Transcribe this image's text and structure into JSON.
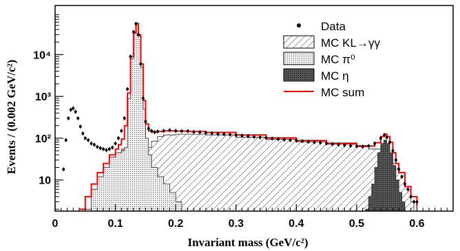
{
  "chart_data": {
    "type": "line",
    "xlabel": "Invariant mass (GeV/c²)",
    "ylabel": "Events / (0.002 GeV/c²)",
    "xlim": [
      0,
      0.66
    ],
    "ylim": [
      1.8,
      150000
    ],
    "yscale": "log",
    "x_ticks": [
      0,
      0.1,
      0.2,
      0.3,
      0.4,
      0.5,
      0.6
    ],
    "x_tick_labels": [
      "0",
      "0.1",
      "0.2",
      "0.3",
      "0.4",
      "0.5",
      "0.6"
    ],
    "y_ticks": [
      10,
      100,
      1000,
      10000
    ],
    "y_tick_labels": [
      "10",
      "10²",
      "10³",
      "10⁴"
    ],
    "legend_position": "top-right",
    "legend": [
      {
        "label": "Data",
        "style": "marker"
      },
      {
        "label": "MC KL→γγ",
        "style": "hatch"
      },
      {
        "label": "MC π⁰",
        "style": "dots"
      },
      {
        "label": "MC η",
        "style": "dense"
      },
      {
        "label": "MC sum",
        "style": "line"
      }
    ],
    "series": [
      {
        "name": "Data",
        "kind": "points",
        "color": "#000000",
        "points": [
          [
            0.014,
            18
          ],
          [
            0.018,
            90
          ],
          [
            0.022,
            300
          ],
          [
            0.026,
            480
          ],
          [
            0.03,
            520
          ],
          [
            0.034,
            430
          ],
          [
            0.038,
            300
          ],
          [
            0.042,
            190
          ],
          [
            0.046,
            130
          ],
          [
            0.05,
            100
          ],
          [
            0.055,
            90
          ],
          [
            0.06,
            75
          ],
          [
            0.065,
            70
          ],
          [
            0.07,
            62
          ],
          [
            0.075,
            58
          ],
          [
            0.08,
            55
          ],
          [
            0.085,
            52
          ],
          [
            0.09,
            55
          ],
          [
            0.095,
            60
          ],
          [
            0.1,
            75
          ],
          [
            0.105,
            100
          ],
          [
            0.11,
            150
          ],
          [
            0.115,
            300
          ],
          [
            0.12,
            1500
          ],
          [
            0.125,
            9000
          ],
          [
            0.13,
            35000
          ],
          [
            0.134,
            55000
          ],
          [
            0.138,
            30000
          ],
          [
            0.142,
            6000
          ],
          [
            0.146,
            900
          ],
          [
            0.15,
            250
          ],
          [
            0.155,
            170
          ],
          [
            0.16,
            150
          ],
          [
            0.165,
            140
          ],
          [
            0.17,
            145
          ],
          [
            0.18,
            150
          ],
          [
            0.19,
            155
          ],
          [
            0.2,
            150
          ],
          [
            0.21,
            148
          ],
          [
            0.22,
            148
          ],
          [
            0.23,
            142
          ],
          [
            0.24,
            140
          ],
          [
            0.25,
            135
          ],
          [
            0.26,
            132
          ],
          [
            0.27,
            128
          ],
          [
            0.28,
            125
          ],
          [
            0.29,
            122
          ],
          [
            0.3,
            118
          ],
          [
            0.31,
            115
          ],
          [
            0.32,
            112
          ],
          [
            0.33,
            108
          ],
          [
            0.34,
            105
          ],
          [
            0.35,
            102
          ],
          [
            0.36,
            98
          ],
          [
            0.37,
            95
          ],
          [
            0.38,
            92
          ],
          [
            0.39,
            90
          ],
          [
            0.4,
            88
          ],
          [
            0.41,
            85
          ],
          [
            0.42,
            82
          ],
          [
            0.43,
            80
          ],
          [
            0.44,
            78
          ],
          [
            0.45,
            75
          ],
          [
            0.46,
            72
          ],
          [
            0.47,
            70
          ],
          [
            0.48,
            68
          ],
          [
            0.49,
            66
          ],
          [
            0.5,
            64
          ],
          [
            0.51,
            63
          ],
          [
            0.52,
            65
          ],
          [
            0.53,
            75
          ],
          [
            0.54,
            100
          ],
          [
            0.546,
            120
          ],
          [
            0.55,
            105
          ],
          [
            0.555,
            80
          ],
          [
            0.56,
            50
          ],
          [
            0.565,
            30
          ],
          [
            0.57,
            18
          ],
          [
            0.575,
            12
          ],
          [
            0.58,
            8
          ],
          [
            0.585,
            6
          ],
          [
            0.59,
            4
          ],
          [
            0.595,
            3
          ],
          [
            0.6,
            3
          ]
        ]
      },
      {
        "name": "MC KL→γγ",
        "kind": "hatch",
        "points": [
          [
            0.09,
            5
          ],
          [
            0.095,
            15
          ],
          [
            0.1,
            30
          ],
          [
            0.105,
            45
          ],
          [
            0.11,
            55
          ],
          [
            0.115,
            48
          ],
          [
            0.12,
            40
          ],
          [
            0.13,
            38
          ],
          [
            0.14,
            45
          ],
          [
            0.15,
            60
          ],
          [
            0.16,
            85
          ],
          [
            0.17,
            110
          ],
          [
            0.18,
            120
          ],
          [
            0.2,
            125
          ],
          [
            0.22,
            125
          ],
          [
            0.25,
            120
          ],
          [
            0.3,
            105
          ],
          [
            0.35,
            95
          ],
          [
            0.4,
            82
          ],
          [
            0.45,
            72
          ],
          [
            0.5,
            62
          ],
          [
            0.52,
            55
          ],
          [
            0.54,
            42
          ],
          [
            0.56,
            25
          ],
          [
            0.57,
            15
          ],
          [
            0.58,
            7
          ],
          [
            0.59,
            3
          ],
          [
            0.595,
            2
          ]
        ]
      },
      {
        "name": "MC π⁰",
        "kind": "dots",
        "points": [
          [
            0.05,
            2
          ],
          [
            0.06,
            6
          ],
          [
            0.07,
            12
          ],
          [
            0.08,
            20
          ],
          [
            0.09,
            35
          ],
          [
            0.1,
            45
          ],
          [
            0.11,
            50
          ],
          [
            0.115,
            60
          ],
          [
            0.12,
            900
          ],
          [
            0.125,
            8000
          ],
          [
            0.13,
            32000
          ],
          [
            0.134,
            50000
          ],
          [
            0.138,
            28000
          ],
          [
            0.142,
            5000
          ],
          [
            0.146,
            500
          ],
          [
            0.15,
            100
          ],
          [
            0.155,
            40
          ],
          [
            0.16,
            20
          ],
          [
            0.17,
            12
          ],
          [
            0.18,
            8
          ],
          [
            0.19,
            5
          ],
          [
            0.2,
            3
          ],
          [
            0.21,
            2
          ]
        ]
      },
      {
        "name": "MC η",
        "kind": "dense",
        "points": [
          [
            0.515,
            2
          ],
          [
            0.52,
            4
          ],
          [
            0.525,
            8
          ],
          [
            0.53,
            20
          ],
          [
            0.535,
            45
          ],
          [
            0.54,
            75
          ],
          [
            0.545,
            90
          ],
          [
            0.55,
            75
          ],
          [
            0.555,
            45
          ],
          [
            0.56,
            22
          ],
          [
            0.565,
            10
          ],
          [
            0.57,
            5
          ],
          [
            0.575,
            3
          ],
          [
            0.58,
            2
          ]
        ]
      },
      {
        "name": "MC sum",
        "kind": "line",
        "color": "#ff0000",
        "points": [
          [
            0.04,
            2
          ],
          [
            0.05,
            4
          ],
          [
            0.06,
            8
          ],
          [
            0.07,
            15
          ],
          [
            0.08,
            25
          ],
          [
            0.09,
            40
          ],
          [
            0.1,
            55
          ],
          [
            0.105,
            70
          ],
          [
            0.11,
            95
          ],
          [
            0.115,
            200
          ],
          [
            0.12,
            1200
          ],
          [
            0.125,
            9000
          ],
          [
            0.13,
            34000
          ],
          [
            0.134,
            56000
          ],
          [
            0.138,
            30000
          ],
          [
            0.142,
            6000
          ],
          [
            0.146,
            800
          ],
          [
            0.15,
            220
          ],
          [
            0.155,
            150
          ],
          [
            0.16,
            140
          ],
          [
            0.17,
            145
          ],
          [
            0.18,
            150
          ],
          [
            0.2,
            148
          ],
          [
            0.22,
            145
          ],
          [
            0.25,
            138
          ],
          [
            0.3,
            120
          ],
          [
            0.35,
            102
          ],
          [
            0.4,
            88
          ],
          [
            0.45,
            76
          ],
          [
            0.5,
            66
          ],
          [
            0.52,
            65
          ],
          [
            0.53,
            78
          ],
          [
            0.54,
            110
          ],
          [
            0.546,
            125
          ],
          [
            0.55,
            110
          ],
          [
            0.555,
            80
          ],
          [
            0.56,
            45
          ],
          [
            0.565,
            25
          ],
          [
            0.57,
            15
          ],
          [
            0.58,
            7
          ],
          [
            0.59,
            4
          ],
          [
            0.6,
            2.5
          ]
        ]
      }
    ]
  }
}
